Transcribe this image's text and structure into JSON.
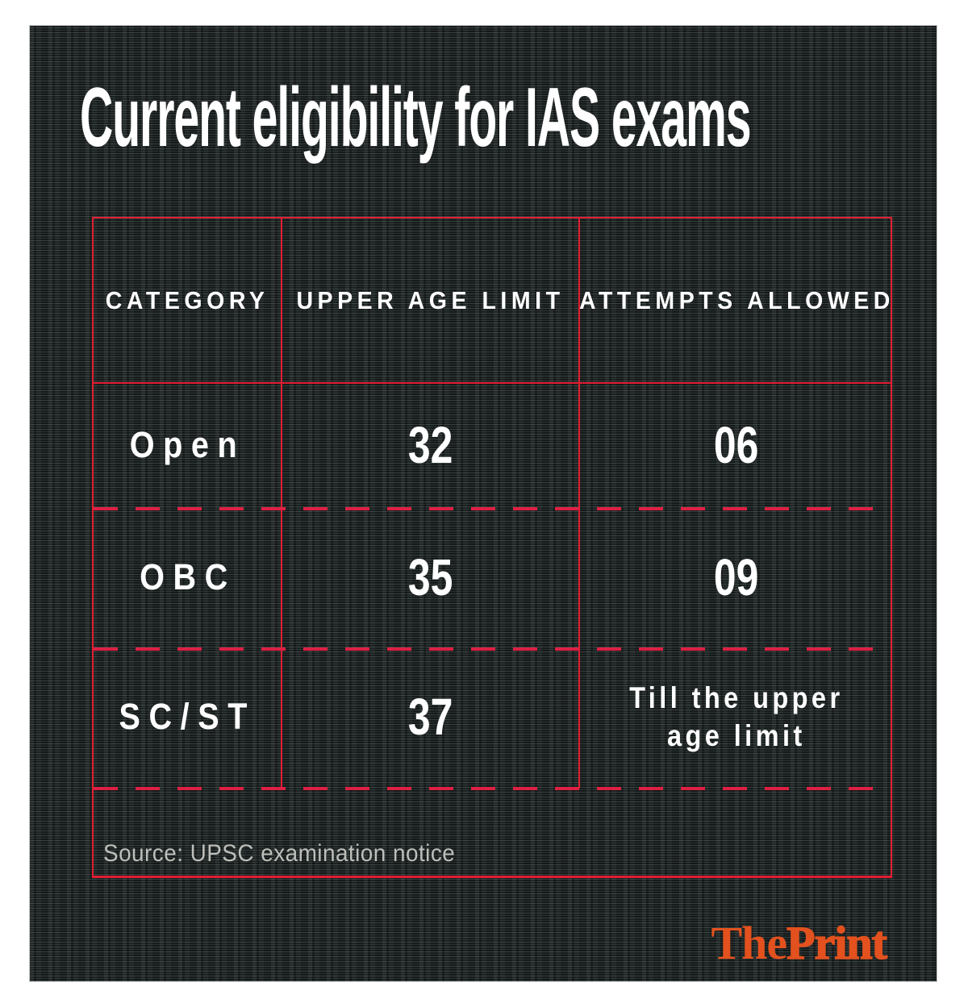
{
  "title": "Current eligibility for IAS exams",
  "table": {
    "headers": [
      "CATEGORY",
      "UPPER AGE LIMIT",
      "ATTEMPTS ALLOWED"
    ],
    "rows": [
      {
        "category": "Open",
        "upper_age_limit": "32",
        "attempts_allowed": "06"
      },
      {
        "category": "OBC",
        "upper_age_limit": "35",
        "attempts_allowed": "09"
      },
      {
        "category": "SC/ST",
        "upper_age_limit": "37",
        "attempts_allowed": "Till the upper\nage limit"
      }
    ],
    "source": "Source: UPSC examination notice"
  },
  "logo": {
    "the": "The",
    "print": "Print"
  },
  "colors": {
    "accent_red": "#e11d33",
    "dashed_red": "#dd2043",
    "logo_orange": "#e2511e",
    "panel_base": "#1f2525",
    "text_white": "#ffffff",
    "source_gray": "#bdbfba",
    "page_margin": "#ffffff"
  },
  "chart_data": {
    "type": "table",
    "title": "Current eligibility for IAS exams",
    "columns": [
      "CATEGORY",
      "UPPER AGE LIMIT",
      "ATTEMPTS ALLOWED"
    ],
    "rows": [
      [
        "Open",
        "32",
        "06"
      ],
      [
        "OBC",
        "35",
        "09"
      ],
      [
        "SC/ST",
        "37",
        "Till the upper age limit"
      ]
    ],
    "source": "Source: UPSC examination notice",
    "layout_hints": {
      "grid": "red solid outer border, solid header rule, dashed row separators",
      "background": "dark woven fabric texture"
    }
  }
}
